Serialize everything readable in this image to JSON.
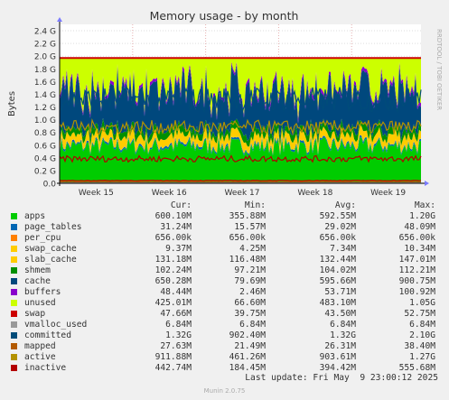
{
  "chart_data": {
    "type": "area",
    "title": "Memory usage - by month",
    "ylabel": "Bytes",
    "side_label": "RRDTOOL / TOBI OETIKER",
    "ylim": [
      0,
      2.5
    ],
    "yticks": [
      "0.0",
      "0.2 G",
      "0.4 G",
      "0.6 G",
      "0.8 G",
      "1.0 G",
      "1.2 G",
      "1.4 G",
      "1.6 G",
      "1.8 G",
      "2.0 G",
      "2.2 G",
      "2.4 G"
    ],
    "ytick_values": [
      0,
      0.2,
      0.4,
      0.6,
      0.8,
      1.0,
      1.2,
      1.4,
      1.6,
      1.8,
      2.0,
      2.2,
      2.4
    ],
    "xticks": [
      "Week 15",
      "Week 16",
      "Week 17",
      "Week 18",
      "Week 19"
    ],
    "x_range_weeks": [
      14.5,
      19.45
    ],
    "grid": true,
    "legend_placement": "bottom",
    "columns": [
      "Cur:",
      "Min:",
      "Avg:",
      "Max:"
    ],
    "series": [
      {
        "name": "apps",
        "color": "#00cc00",
        "cur": "600.10M",
        "min": "355.88M",
        "avg": "592.55M",
        "max": "1.20G"
      },
      {
        "name": "page_tables",
        "color": "#0066b3",
        "cur": "31.24M",
        "min": "15.57M",
        "avg": "29.02M",
        "max": "48.09M"
      },
      {
        "name": "per_cpu",
        "color": "#ff8000",
        "cur": "656.00k",
        "min": "656.00k",
        "avg": "656.00k",
        "max": "656.00k"
      },
      {
        "name": "swap_cache",
        "color": "#ffcc00",
        "cur": "9.37M",
        "min": "4.25M",
        "avg": "7.34M",
        "max": "10.34M"
      },
      {
        "name": "slab_cache",
        "color": "#ffcc00",
        "cur": "131.18M",
        "min": "116.48M",
        "avg": "132.44M",
        "max": "147.01M"
      },
      {
        "name": "shmem",
        "color": "#008f00",
        "cur": "102.24M",
        "min": "97.21M",
        "avg": "104.02M",
        "max": "112.21M"
      },
      {
        "name": "cache",
        "color": "#00487d",
        "cur": "650.28M",
        "min": "79.69M",
        "avg": "595.66M",
        "max": "900.75M"
      },
      {
        "name": "buffers",
        "color": "#8800cc",
        "cur": "48.44M",
        "min": "2.46M",
        "avg": "53.71M",
        "max": "100.92M"
      },
      {
        "name": "unused",
        "color": "#ccff00",
        "cur": "425.01M",
        "min": "66.60M",
        "avg": "483.10M",
        "max": "1.05G"
      },
      {
        "name": "swap",
        "color": "#cc0000",
        "cur": "47.66M",
        "min": "39.75M",
        "avg": "43.50M",
        "max": "52.75M"
      },
      {
        "name": "vmalloc_used",
        "color": "#999999",
        "cur": "6.84M",
        "min": "6.84M",
        "avg": "6.84M",
        "max": "6.84M"
      },
      {
        "name": "committed",
        "color": "#004c7a",
        "cur": "1.32G",
        "min": "902.40M",
        "avg": "1.32G",
        "max": "2.10G"
      },
      {
        "name": "mapped",
        "color": "#b35a00",
        "cur": "27.63M",
        "min": "21.49M",
        "avg": "26.31M",
        "max": "38.40M"
      },
      {
        "name": "active",
        "color": "#b39200",
        "cur": "911.88M",
        "min": "461.26M",
        "avg": "903.61M",
        "max": "1.27G"
      },
      {
        "name": "inactive",
        "color": "#b30000",
        "cur": "442.74M",
        "min": "184.45M",
        "avg": "394.42M",
        "max": "555.68M"
      }
    ],
    "total_line_value": 1.97,
    "last_update": "Last update: Fri May  9 23:00:12 2025",
    "footer": "Munin 2.0.75"
  }
}
